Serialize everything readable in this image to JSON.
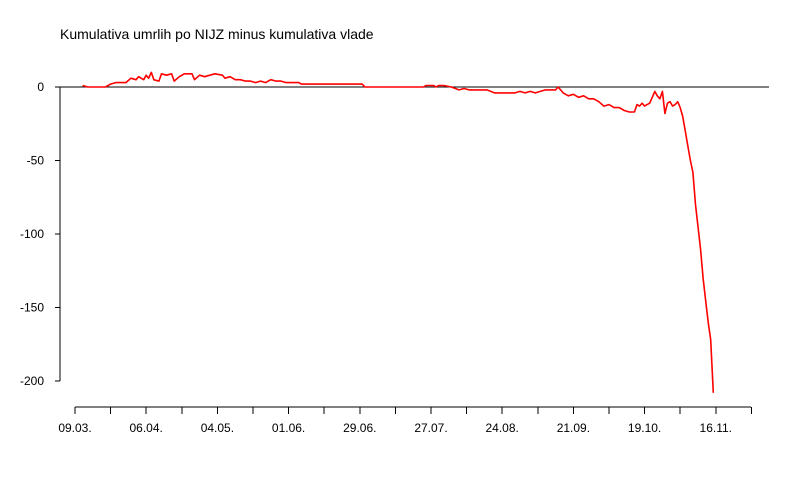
{
  "chart_data": {
    "type": "line",
    "title": "Kumulativa umrlih po NIJZ minus kumulativa vlade",
    "xlabel": "",
    "ylabel": "",
    "x_ticks": [
      "09.03.",
      "06.04.",
      "04.05.",
      "01.06.",
      "29.06.",
      "27.07.",
      "24.08.",
      "21.09.",
      "19.10.",
      "16.11."
    ],
    "y_ticks": [
      0,
      -50,
      -100,
      -150,
      -200
    ],
    "xlim": [
      "2020-03-04",
      "2020-11-28"
    ],
    "ylim": [
      -200,
      8
    ],
    "grid": false,
    "reference_line_y": 0,
    "series": [
      {
        "color": "#ff0000",
        "points": [
          [
            "2020-03-08",
            1
          ],
          [
            "2020-03-10",
            0
          ],
          [
            "2020-03-17",
            0
          ],
          [
            "2020-03-19",
            2
          ],
          [
            "2020-03-21",
            3
          ],
          [
            "2020-03-25",
            3
          ],
          [
            "2020-03-27",
            6
          ],
          [
            "2020-03-29",
            5
          ],
          [
            "2020-03-30",
            7
          ],
          [
            "2020-04-01",
            5
          ],
          [
            "2020-04-02",
            8
          ],
          [
            "2020-04-03",
            6
          ],
          [
            "2020-04-04",
            10
          ],
          [
            "2020-04-05",
            5
          ],
          [
            "2020-04-07",
            4
          ],
          [
            "2020-04-08",
            9
          ],
          [
            "2020-04-10",
            8
          ],
          [
            "2020-04-12",
            9
          ],
          [
            "2020-04-13",
            4
          ],
          [
            "2020-04-15",
            7
          ],
          [
            "2020-04-17",
            9
          ],
          [
            "2020-04-20",
            9
          ],
          [
            "2020-04-21",
            5
          ],
          [
            "2020-04-23",
            8
          ],
          [
            "2020-04-25",
            7
          ],
          [
            "2020-04-27",
            8
          ],
          [
            "2020-04-29",
            9
          ],
          [
            "2020-05-02",
            8
          ],
          [
            "2020-05-03",
            6
          ],
          [
            "2020-05-05",
            7
          ],
          [
            "2020-05-07",
            5
          ],
          [
            "2020-05-09",
            5
          ],
          [
            "2020-05-11",
            4
          ],
          [
            "2020-05-13",
            4
          ],
          [
            "2020-05-15",
            3
          ],
          [
            "2020-05-17",
            4
          ],
          [
            "2020-05-19",
            3
          ],
          [
            "2020-05-21",
            5
          ],
          [
            "2020-05-23",
            4
          ],
          [
            "2020-05-25",
            4
          ],
          [
            "2020-05-27",
            3
          ],
          [
            "2020-06-01",
            3
          ],
          [
            "2020-06-02",
            2
          ],
          [
            "2020-06-26",
            2
          ],
          [
            "2020-06-27",
            0
          ],
          [
            "2020-07-20",
            0
          ],
          [
            "2020-07-21",
            1
          ],
          [
            "2020-07-24",
            1
          ],
          [
            "2020-07-25",
            0
          ],
          [
            "2020-07-26",
            1
          ],
          [
            "2020-07-28",
            1
          ],
          [
            "2020-07-31",
            0
          ],
          [
            "2020-08-03",
            -2
          ],
          [
            "2020-08-05",
            -1
          ],
          [
            "2020-08-07",
            -2
          ],
          [
            "2020-08-10",
            -2
          ],
          [
            "2020-08-14",
            -2
          ],
          [
            "2020-08-17",
            -4
          ],
          [
            "2020-08-25",
            -4
          ],
          [
            "2020-08-27",
            -3
          ],
          [
            "2020-08-29",
            -4
          ],
          [
            "2020-08-31",
            -3
          ],
          [
            "2020-09-02",
            -4
          ],
          [
            "2020-09-04",
            -3
          ],
          [
            "2020-09-06",
            -2
          ],
          [
            "2020-09-10",
            -2
          ],
          [
            "2020-09-11",
            0
          ],
          [
            "2020-09-13",
            -4
          ],
          [
            "2020-09-15",
            -6
          ],
          [
            "2020-09-17",
            -5
          ],
          [
            "2020-09-19",
            -7
          ],
          [
            "2020-09-21",
            -6
          ],
          [
            "2020-09-23",
            -8
          ],
          [
            "2020-09-25",
            -8
          ],
          [
            "2020-09-27",
            -10
          ],
          [
            "2020-09-29",
            -13
          ],
          [
            "2020-10-01",
            -12
          ],
          [
            "2020-10-03",
            -14
          ],
          [
            "2020-10-05",
            -14
          ],
          [
            "2020-10-07",
            -16
          ],
          [
            "2020-10-09",
            -17
          ],
          [
            "2020-10-11",
            -17
          ],
          [
            "2020-10-12",
            -12
          ],
          [
            "2020-10-13",
            -13
          ],
          [
            "2020-10-14",
            -11
          ],
          [
            "2020-10-15",
            -13
          ],
          [
            "2020-10-16",
            -12
          ],
          [
            "2020-10-17",
            -11
          ],
          [
            "2020-10-19",
            -3
          ],
          [
            "2020-10-20",
            -6
          ],
          [
            "2020-10-21",
            -8
          ],
          [
            "2020-10-22",
            -3
          ],
          [
            "2020-10-23",
            -18
          ],
          [
            "2020-10-24",
            -11
          ],
          [
            "2020-10-25",
            -10
          ],
          [
            "2020-10-26",
            -13
          ],
          [
            "2020-10-27",
            -12
          ],
          [
            "2020-10-28",
            -10
          ],
          [
            "2020-10-29",
            -14
          ],
          [
            "2020-10-30",
            -20
          ],
          [
            "2020-10-31",
            -30
          ],
          [
            "2020-11-01",
            -40
          ],
          [
            "2020-11-02",
            -50
          ],
          [
            "2020-11-03",
            -58
          ],
          [
            "2020-11-04",
            -80
          ],
          [
            "2020-11-05",
            -95
          ],
          [
            "2020-11-06",
            -110
          ],
          [
            "2020-11-07",
            -130
          ],
          [
            "2020-11-08",
            -145
          ],
          [
            "2020-11-09",
            -160
          ],
          [
            "2020-11-10",
            -172
          ],
          [
            "2020-11-11",
            -208
          ]
        ]
      }
    ]
  }
}
